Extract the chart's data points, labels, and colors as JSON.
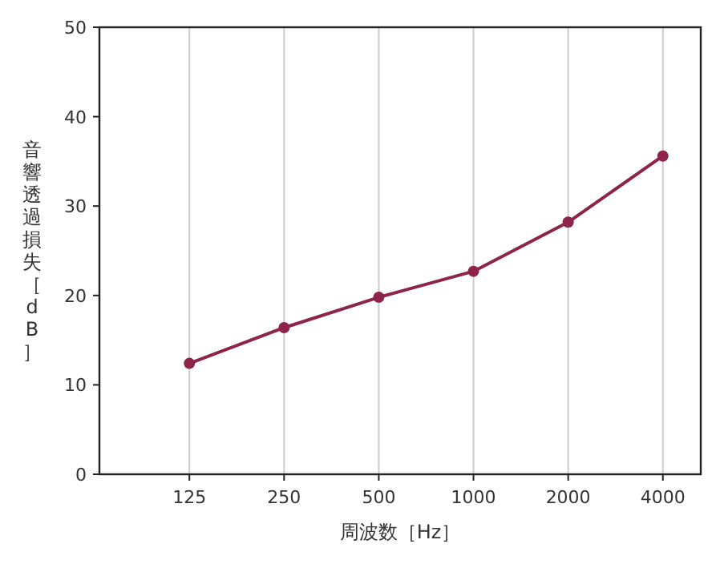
{
  "chart_data": {
    "type": "line",
    "xlabel": "周波数［Hz］",
    "ylabel": "音響透過損失［dB］",
    "categories": [
      "125",
      "250",
      "500",
      "1000",
      "2000",
      "4000"
    ],
    "series": [
      {
        "color": "#8e2449",
        "values": [
          12.4,
          16.4,
          19.8,
          22.7,
          28.2,
          35.6
        ]
      }
    ],
    "ylim": [
      0,
      50
    ],
    "yticks": [
      0,
      10,
      20,
      30,
      40,
      50
    ],
    "grid": "x",
    "marker": "circle",
    "line_style": "solid"
  }
}
